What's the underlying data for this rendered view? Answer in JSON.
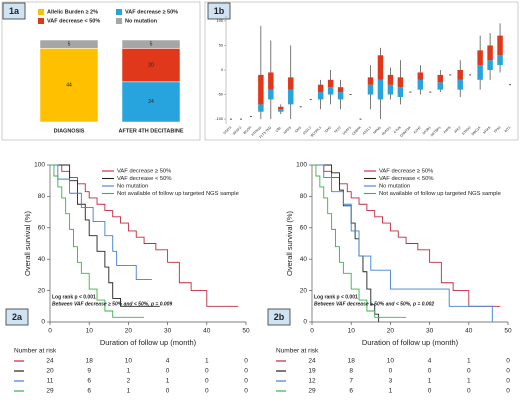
{
  "chart_data": [
    {
      "type": "stacked_bar",
      "tag": "1a",
      "categories": [
        "DIAGNOSIS",
        "AFTER 4TH DECITABINE"
      ],
      "series": [
        {
          "name": "Allelic Burden ≥ 2%",
          "color": "#ffc000",
          "values": [
            44,
            null
          ]
        },
        {
          "name": "VAF decrease ≥ 50%",
          "color": "#27a4dd",
          "values": [
            null,
            24
          ]
        },
        {
          "name": "VAF decrease < 50%",
          "color": "#e0381a",
          "values": [
            null,
            20
          ]
        },
        {
          "name": "No mutation",
          "color": "#a6a6a6",
          "values": [
            5,
            5
          ]
        }
      ]
    },
    {
      "type": "boxplot",
      "tag": "1b",
      "categories": [
        "STAT3",
        "SRSF2",
        "BCOR",
        "PTPN11",
        "FLT3-TKD",
        "CBL",
        "NRAS",
        "IDH1",
        "ASXL2",
        "BCORL1",
        "IDH2",
        "TET2",
        "U2AF1",
        "CEBPA",
        "ASXL1",
        "NPM1",
        "RUNX1",
        "ETV6",
        "DNMT3A",
        "EZH2",
        "SF3B1",
        "SETBP1",
        "PHF6",
        "JAK2",
        "STAG2",
        "SMC1A",
        "KRAS",
        "TP53",
        "WT1"
      ],
      "low": [
        -100,
        -100,
        -95,
        -100,
        -100,
        -90,
        -100,
        -75,
        -60,
        -80,
        -70,
        -80,
        -50,
        -100,
        -80,
        -100,
        -60,
        -70,
        -45,
        -50,
        -45,
        -45,
        -10,
        -55,
        -10,
        -40,
        -20,
        -5,
        -30
      ],
      "q1": [
        -100,
        -100,
        -95,
        -85,
        -60,
        -85,
        -70,
        -75,
        -60,
        -60,
        -50,
        -60,
        -50,
        -100,
        -50,
        -60,
        -50,
        -55,
        -45,
        -40,
        -45,
        -40,
        -10,
        -40,
        -10,
        -20,
        0,
        10,
        -30
      ],
      "median": [
        -100,
        -100,
        -95,
        -70,
        -40,
        -80,
        -40,
        -75,
        -60,
        -45,
        -35,
        -45,
        -50,
        -100,
        -30,
        -20,
        -30,
        -35,
        -45,
        -20,
        -45,
        -25,
        -10,
        -20,
        -10,
        10,
        20,
        30,
        -30
      ],
      "q3": [
        -100,
        -100,
        -95,
        -10,
        -5,
        -75,
        -15,
        -75,
        -60,
        -30,
        -20,
        -35,
        -50,
        -100,
        -15,
        30,
        -10,
        -15,
        -45,
        -5,
        -45,
        -10,
        -10,
        0,
        -10,
        40,
        50,
        70,
        -30
      ],
      "high": [
        -100,
        -100,
        -95,
        90,
        60,
        -70,
        50,
        -75,
        -60,
        -20,
        0,
        -20,
        -50,
        -100,
        10,
        45,
        5,
        20,
        -45,
        10,
        -45,
        0,
        -10,
        20,
        -10,
        70,
        75,
        95,
        -30
      ],
      "upper_color": "#e0381a",
      "lower_color": "#27a4dd",
      "ylim": [
        -110,
        110
      ],
      "yticks": [
        100,
        50,
        0,
        -50,
        -100
      ]
    },
    {
      "type": "km",
      "tag": "2a",
      "xlabel": "Duration of follow up (month)",
      "ylabel": "Overall survival (%)",
      "xlim": [
        0,
        50
      ],
      "ylim": [
        0,
        100
      ],
      "xticks": [
        0,
        10,
        20,
        30,
        40,
        50
      ],
      "yticks": [
        0,
        20,
        40,
        60,
        80,
        100
      ],
      "annotations": [
        "Log rank  p < 0.001",
        "Between VAF decrease ≥ 50% and < 50%, p = 0.009"
      ],
      "risk_title": "Number at risk",
      "series": [
        {
          "name": "VAF decrease ≥ 50%",
          "color": "#c0283c",
          "x": [
            0,
            3,
            5,
            7,
            9,
            10,
            12,
            14,
            16,
            18,
            20,
            22,
            24,
            27,
            30,
            33,
            36,
            40,
            48
          ],
          "y": [
            100,
            96,
            92,
            88,
            83,
            79,
            75,
            71,
            67,
            63,
            58,
            54,
            50,
            46,
            38,
            25,
            20,
            10,
            10
          ],
          "at_risk": [
            24,
            18,
            10,
            4,
            1,
            0
          ]
        },
        {
          "name": "VAF decrease <  50%",
          "color": "#222222",
          "x": [
            0,
            5,
            7,
            9,
            10,
            12,
            14,
            15,
            16,
            18,
            28
          ],
          "y": [
            100,
            90,
            75,
            65,
            55,
            45,
            35,
            25,
            15,
            10,
            10
          ],
          "at_risk": [
            20,
            9,
            1,
            0,
            0,
            0
          ]
        },
        {
          "name": "No mutation",
          "color": "#3f7fd0",
          "x": [
            0,
            2,
            5,
            8,
            11,
            14,
            16,
            17,
            22,
            26
          ],
          "y": [
            100,
            91,
            82,
            73,
            64,
            55,
            45,
            36,
            27,
            27
          ],
          "at_risk": [
            11,
            6,
            2,
            1,
            0,
            0
          ]
        },
        {
          "name": "Not available of follow up targeted NGS sample",
          "color": "#38b24a",
          "x": [
            0,
            1,
            2,
            3,
            4,
            5,
            6,
            7,
            8,
            10,
            12,
            14,
            16,
            24
          ],
          "y": [
            100,
            93,
            86,
            79,
            69,
            59,
            48,
            38,
            31,
            21,
            14,
            7,
            3,
            3
          ],
          "at_risk": [
            29,
            6,
            1,
            0,
            0,
            0
          ]
        }
      ]
    },
    {
      "type": "km",
      "tag": "2b",
      "xlabel": "Duration of follow up (month)",
      "ylabel": "Overall survival (%)",
      "xlim": [
        0,
        50
      ],
      "ylim": [
        0,
        100
      ],
      "xticks": [
        0,
        10,
        20,
        30,
        40,
        50
      ],
      "yticks": [
        0,
        20,
        40,
        60,
        80,
        100
      ],
      "annotations": [
        "Log rank  p < 0.001",
        "Between VAF decrease ≥ 50% and < 50%, p = 0.002"
      ],
      "risk_title": "Number at risk",
      "series": [
        {
          "name": "VAF decrease ≥ 50%",
          "color": "#c0283c",
          "x": [
            0,
            3,
            5,
            7,
            9,
            10,
            12,
            14,
            16,
            18,
            20,
            22,
            24,
            27,
            30,
            33,
            36,
            40,
            48
          ],
          "y": [
            100,
            96,
            92,
            88,
            83,
            79,
            75,
            71,
            67,
            63,
            58,
            54,
            50,
            46,
            38,
            25,
            20,
            10,
            10
          ],
          "at_risk": [
            24,
            18,
            10,
            4,
            1,
            0
          ]
        },
        {
          "name": "VAF decrease <  50%",
          "color": "#222222",
          "x": [
            0,
            5,
            7,
            8,
            10,
            11,
            12,
            13,
            14,
            15,
            16,
            17
          ],
          "y": [
            100,
            95,
            84,
            74,
            63,
            53,
            42,
            32,
            21,
            11,
            5,
            0
          ],
          "at_risk": [
            19,
            8,
            0,
            0,
            0,
            0
          ]
        },
        {
          "name": "No mutation",
          "color": "#3f7fd0",
          "x": [
            0,
            3,
            5,
            8,
            10,
            12,
            15,
            20,
            30,
            35,
            46
          ],
          "y": [
            100,
            92,
            83,
            75,
            58,
            42,
            33,
            21,
            21,
            10,
            0
          ],
          "at_risk": [
            12,
            7,
            3,
            1,
            1,
            0
          ]
        },
        {
          "name": "Not available of follow up targeted NGS sample",
          "color": "#38b24a",
          "x": [
            0,
            1,
            2,
            3,
            4,
            5,
            6,
            7,
            8,
            10,
            12,
            14,
            16,
            24
          ],
          "y": [
            100,
            93,
            86,
            79,
            69,
            59,
            48,
            38,
            31,
            21,
            14,
            7,
            3,
            3
          ],
          "at_risk": [
            29,
            6,
            1,
            0,
            0,
            0
          ]
        }
      ]
    }
  ]
}
